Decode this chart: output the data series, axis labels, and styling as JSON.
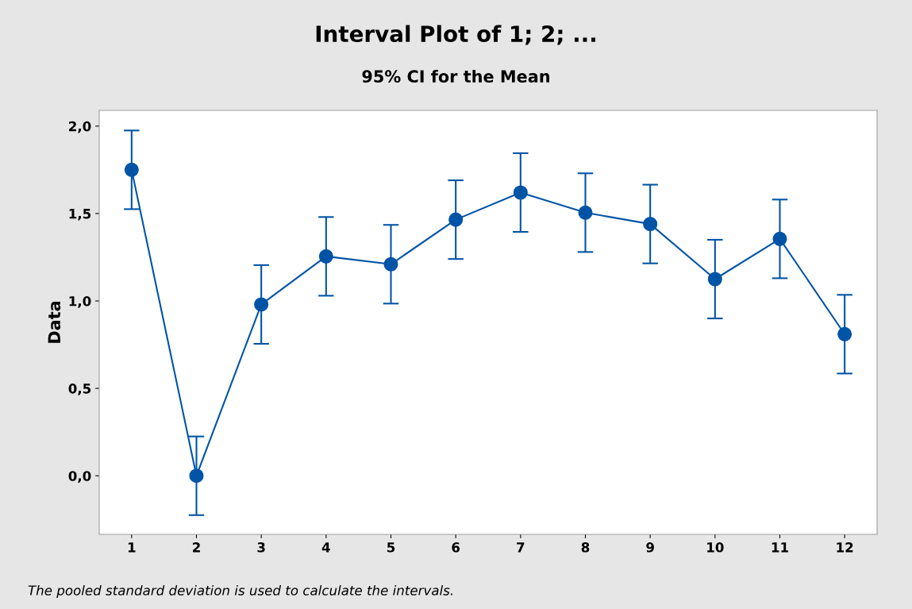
{
  "chart_data": {
    "type": "line",
    "title": "Interval Plot of 1; 2; ...",
    "subtitle": "95% CI for the Mean",
    "ylabel": "Data",
    "categories": [
      "1",
      "2",
      "3",
      "4",
      "5",
      "6",
      "7",
      "8",
      "9",
      "10",
      "11",
      "12"
    ],
    "values": [
      1.75,
      0.0,
      0.98,
      1.255,
      1.21,
      1.465,
      1.62,
      1.505,
      1.44,
      1.125,
      1.355,
      0.81
    ],
    "errors": [
      0.225,
      0.225,
      0.225,
      0.225,
      0.225,
      0.225,
      0.225,
      0.225,
      0.225,
      0.225,
      0.225,
      0.225
    ],
    "color": "#0054a6",
    "marker": "circle",
    "line_style": "solid",
    "grid": false,
    "ylim": [
      -0.335,
      2.09
    ],
    "yticks": [
      {
        "value": 0.0,
        "label": "0,0"
      },
      {
        "value": 0.5,
        "label": "0,5"
      },
      {
        "value": 1.0,
        "label": "1,0"
      },
      {
        "value": 1.5,
        "label": "1,5"
      },
      {
        "value": 2.0,
        "label": "2,0"
      }
    ],
    "annotations": [
      "The pooled standard deviation is used to calculate the intervals."
    ]
  }
}
